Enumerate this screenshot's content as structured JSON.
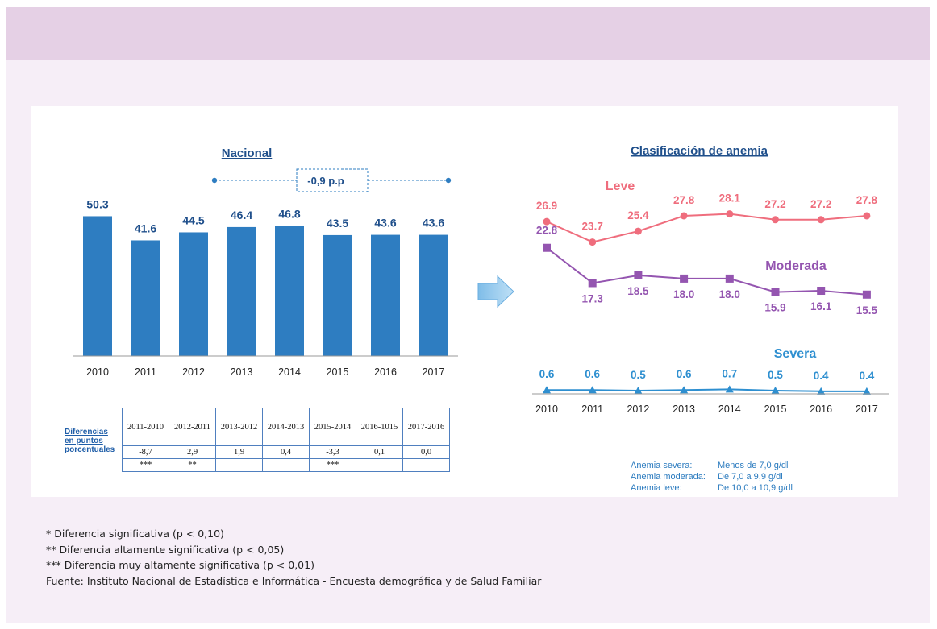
{
  "colors": {
    "bar": "#2e7dc1",
    "leve": "#ef6d7d",
    "moderada": "#9455b0",
    "severa": "#2e8fd0",
    "title": "#1f4f8b"
  },
  "left_chart": {
    "title": "Nacional",
    "change_label": "-0,9 p.p"
  },
  "right_chart": {
    "title": "Clasificación de anemia",
    "series_labels": {
      "leve": "Leve",
      "moderada": "Moderada",
      "severa": "Severa"
    }
  },
  "chart_data": [
    {
      "type": "bar",
      "title": "Nacional",
      "categories": [
        "2010",
        "2011",
        "2012",
        "2013",
        "2014",
        "2015",
        "2016",
        "2017"
      ],
      "values": [
        50.3,
        41.6,
        44.5,
        46.4,
        46.8,
        43.5,
        43.6,
        43.6
      ],
      "value_labels": [
        "50.3",
        "41.6",
        "44.5",
        "46.4",
        "46.8",
        "43.5",
        "43.6",
        "43.6"
      ],
      "annotation": "-0,9 p.p"
    },
    {
      "type": "line",
      "title": "Clasificación de anemia",
      "x": [
        "2010",
        "2011",
        "2012",
        "2013",
        "2014",
        "2015",
        "2016",
        "2017"
      ],
      "series": [
        {
          "name": "Leve",
          "values": [
            26.9,
            23.7,
            25.4,
            27.8,
            28.1,
            27.2,
            27.2,
            27.8
          ],
          "labels": [
            "26.9",
            "23.7",
            "25.4",
            "27.8",
            "28.1",
            "27.2",
            "27.2",
            "27.8"
          ]
        },
        {
          "name": "Moderada",
          "values": [
            22.8,
            17.3,
            18.5,
            18.0,
            18.0,
            15.9,
            16.1,
            15.5
          ],
          "labels": [
            "22.8",
            "17.3",
            "18.5",
            "18.0",
            "18.0",
            "15.9",
            "16.1",
            "15.5"
          ]
        },
        {
          "name": "Severa",
          "values": [
            0.6,
            0.6,
            0.5,
            0.6,
            0.7,
            0.5,
            0.4,
            0.4
          ],
          "labels": [
            "0.6",
            "0.6",
            "0.5",
            "0.6",
            "0.7",
            "0.5",
            "0.4",
            "0.4"
          ]
        }
      ]
    },
    {
      "type": "table",
      "row_label": [
        "Diferencias",
        "en puntos",
        "porcentuales"
      ],
      "columns": [
        "2011-2010",
        "2012-2011",
        "2013-2012",
        "2014-2013",
        "2015-2014",
        "2016-1015",
        "2017-2016"
      ],
      "values": [
        "-8,7",
        "2,9",
        "1,9",
        "0,4",
        "-3,3",
        "0,1",
        "0,0"
      ],
      "significance": [
        "***",
        "**",
        "",
        "",
        "***",
        "",
        ""
      ]
    }
  ],
  "legend": [
    {
      "key": "Anemia severa:",
      "value": "Menos de 7,0 g/dl"
    },
    {
      "key": "Anemia moderada:",
      "value": "De 7,0 a 9,9 g/dl"
    },
    {
      "key": "Anemia leve:",
      "value": "De 10,0 a 10,9 g/dl"
    }
  ],
  "notes": [
    "* Diferencia significativa (p < 0,10)",
    "** Diferencia altamente significativa (p < 0,05)",
    "*** Diferencia muy altamente significativa (p < 0,01)",
    "Fuente: Instituto Nacional de Estadística e Informática - Encuesta demográfica y de Salud Familiar"
  ]
}
